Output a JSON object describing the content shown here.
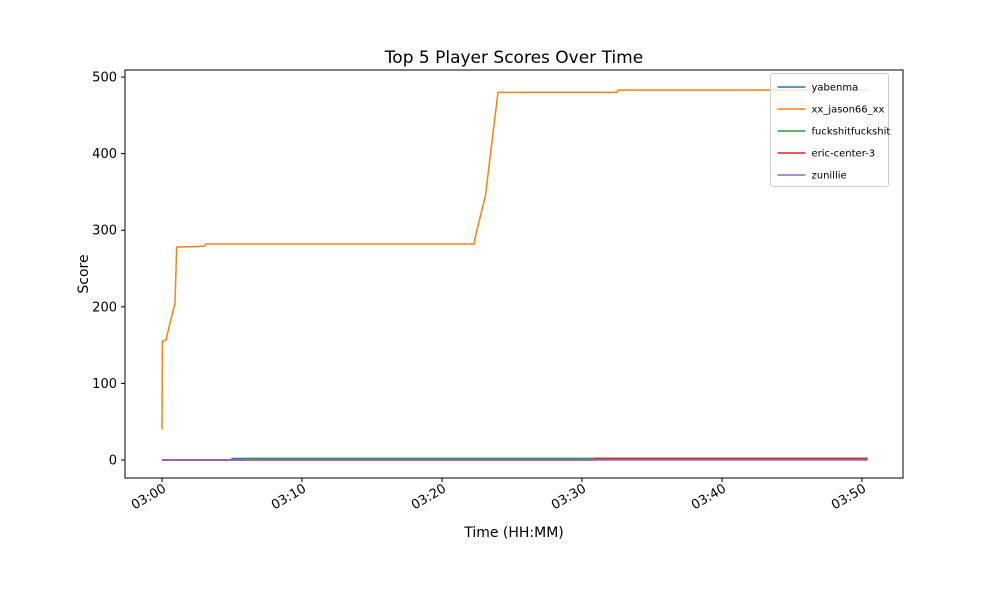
{
  "figure": {
    "title": "Top 5 Player Scores Over Time",
    "xlabel": "Time (HH:MM)",
    "ylabel": "Score"
  },
  "chart_data": {
    "type": "line",
    "title": "Top 5 Player Scores Over Time",
    "xlabel": "Time (HH:MM)",
    "ylabel": "Score",
    "x_unit": "minutes after 03:00",
    "xlim": [
      -2.64,
      52.93
    ],
    "ylim": [
      -23.5,
      509.2
    ],
    "grid": false,
    "legend_position": "upper right",
    "x_ticks": [
      {
        "t": 0,
        "label": "03:00"
      },
      {
        "t": 10,
        "label": "03:10"
      },
      {
        "t": 20,
        "label": "03:20"
      },
      {
        "t": 30,
        "label": "03:30"
      },
      {
        "t": 40,
        "label": "03:40"
      },
      {
        "t": 50,
        "label": "03:50"
      }
    ],
    "y_ticks": [
      {
        "v": 0,
        "label": "0"
      },
      {
        "v": 100,
        "label": "100"
      },
      {
        "v": 200,
        "label": "200"
      },
      {
        "v": 300,
        "label": "300"
      },
      {
        "v": 400,
        "label": "400"
      },
      {
        "v": 500,
        "label": "500"
      }
    ],
    "series": [
      {
        "name": "yabenma",
        "color": "#1f77b4",
        "points": [
          [
            0,
            0
          ],
          [
            5.0,
            0
          ],
          [
            5.0,
            2
          ],
          [
            50.4,
            2
          ]
        ]
      },
      {
        "name": "xx_jason66_xx",
        "color": "#ff7f0e",
        "points": [
          [
            0,
            40
          ],
          [
            0.03,
            155
          ],
          [
            0.3,
            157
          ],
          [
            0.35,
            162
          ],
          [
            0.93,
            205
          ],
          [
            1.05,
            278
          ],
          [
            3.05,
            279
          ],
          [
            3.1,
            282
          ],
          [
            22.3,
            282
          ],
          [
            22.35,
            289
          ],
          [
            23.1,
            345
          ],
          [
            24.0,
            480
          ],
          [
            32.5,
            480
          ],
          [
            32.55,
            483
          ],
          [
            50.4,
            483
          ]
        ]
      },
      {
        "name": "fuckshitfuckshit",
        "color": "#2ca02c",
        "points": [
          [
            0,
            0
          ],
          [
            5.75,
            0
          ],
          [
            5.75,
            2
          ],
          [
            50.4,
            2
          ]
        ]
      },
      {
        "name": "eric-center-3",
        "color": "#d62728",
        "points": [
          [
            0,
            0
          ],
          [
            30.9,
            0
          ],
          [
            30.9,
            2
          ],
          [
            50.4,
            2
          ]
        ]
      },
      {
        "name": "zunillie",
        "color": "#9467bd",
        "points": [
          [
            0,
            0
          ],
          [
            50.4,
            0
          ]
        ]
      }
    ],
    "legend": [
      {
        "label": "yabenma",
        "color": "#1f77b4"
      },
      {
        "label": "xx_jason66_xx",
        "color": "#ff7f0e"
      },
      {
        "label": "fuckshitfuckshit",
        "color": "#2ca02c"
      },
      {
        "label": "eric-center-3",
        "color": "#d62728"
      },
      {
        "label": "zunillie",
        "color": "#9467bd"
      }
    ],
    "colors": {
      "spine": "#000000",
      "text": "#000000",
      "legend_edge": "#cccccc",
      "legend_face": "rgba(255,255,255,0.8)"
    }
  }
}
